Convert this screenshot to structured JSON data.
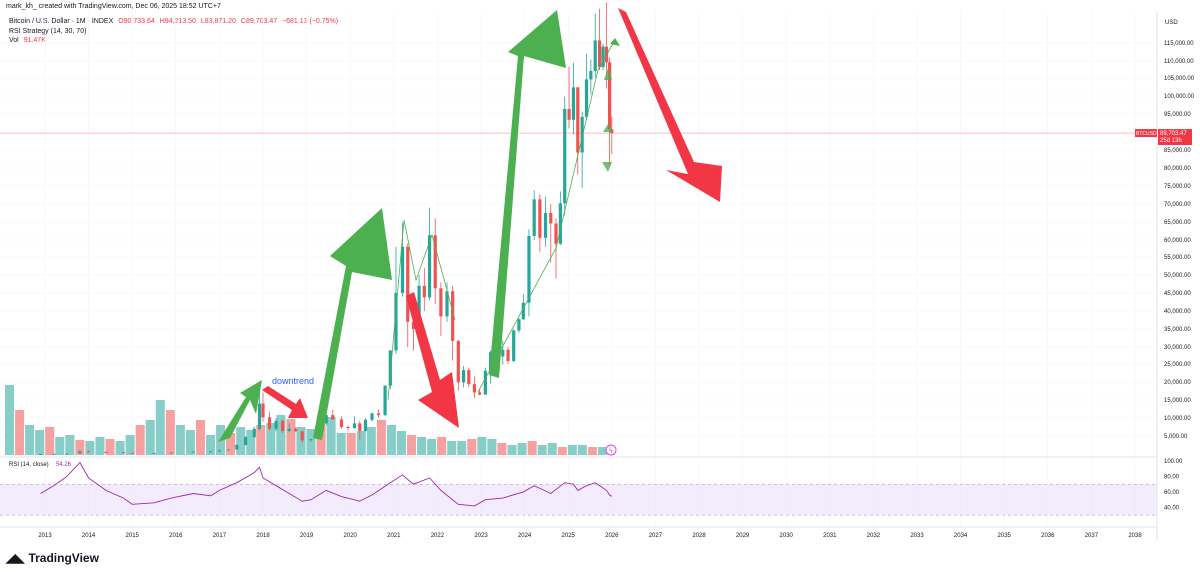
{
  "header": {
    "caption": "mark_kh_ created with TradingView.com, Dec 06, 2025 18:52 UTC+7"
  },
  "legend": {
    "symbol": "Bitcoin / U.S. Dollar · 1M · INDEX",
    "open": "O90,733.64",
    "high": "H94,213.50",
    "low": "L83,871.20",
    "close": "C89,703.47",
    "change": "−681.13 (−0.75%)",
    "strategy": "RSI Strategy (14, 30, 70)",
    "vol_label": "Vol",
    "vol_value": "91.47K"
  },
  "price_axis": {
    "currency": "USD",
    "ticks": [
      "115,000.00",
      "110,000.00",
      "105,000.00",
      "100,000.00",
      "95,000.00",
      "85,000.00",
      "80,000.00",
      "75,000.00",
      "70,000.00",
      "65,000.00",
      "60,000.00",
      "55,000.00",
      "50,000.00",
      "45,000.00",
      "40,000.00",
      "35,000.00",
      "30,000.00",
      "25,000.00",
      "20,000.00",
      "15,000.00",
      "10,000.00",
      "5,000.00"
    ],
    "last_price_symbol": "BTCUSD",
    "last_price": "89,703.47",
    "countdown": "25d 13h"
  },
  "rsi_pane": {
    "label": "RSI (14, close)",
    "value": "54.26",
    "ticks": [
      "100.00",
      "80.00",
      "60.00",
      "40.00"
    ]
  },
  "time_axis": {
    "years": [
      "2013",
      "2014",
      "2015",
      "2016",
      "2017",
      "2018",
      "2019",
      "2020",
      "2021",
      "2022",
      "2023",
      "2024",
      "2025",
      "2026",
      "2027",
      "2028",
      "2029",
      "2030",
      "2031",
      "2032",
      "2033",
      "2034",
      "2035",
      "2036",
      "2037",
      "2038"
    ]
  },
  "annotations": {
    "downtrend_text": "downtrend"
  },
  "footer": {
    "brand": "TradingView"
  },
  "colors": {
    "up": "#26a69a",
    "down": "#ef5350",
    "up_arrow": "#4caf50",
    "down_arrow": "#f23645",
    "rsi": "#9c27b0",
    "downtrend_text": "#2962ff"
  },
  "chart_data": {
    "type": "candlestick",
    "title": "Bitcoin / U.S. Dollar · 1M · INDEX",
    "y_scale": "log",
    "y_unit": "USD",
    "last_close": 89703.47,
    "candles": [
      {
        "t": 2012.9,
        "o": 13,
        "h": 14,
        "l": 12,
        "c": 13
      },
      {
        "t": 2013.2,
        "o": 13,
        "h": 60,
        "l": 13,
        "c": 55
      },
      {
        "t": 2013.5,
        "o": 55,
        "h": 120,
        "l": 55,
        "c": 110
      },
      {
        "t": 2013.8,
        "o": 110,
        "h": 1150,
        "l": 100,
        "c": 750
      },
      {
        "t": 2014.0,
        "o": 750,
        "h": 1000,
        "l": 500,
        "c": 600
      },
      {
        "t": 2014.4,
        "o": 600,
        "h": 650,
        "l": 400,
        "c": 450
      },
      {
        "t": 2014.8,
        "o": 450,
        "h": 500,
        "l": 300,
        "c": 330
      },
      {
        "t": 2015.0,
        "o": 330,
        "h": 350,
        "l": 180,
        "c": 220
      },
      {
        "t": 2015.5,
        "o": 220,
        "h": 300,
        "l": 200,
        "c": 250
      },
      {
        "t": 2015.9,
        "o": 250,
        "h": 450,
        "l": 240,
        "c": 430
      },
      {
        "t": 2016.4,
        "o": 430,
        "h": 780,
        "l": 420,
        "c": 650
      },
      {
        "t": 2016.8,
        "o": 650,
        "h": 800,
        "l": 600,
        "c": 750
      },
      {
        "t": 2017.0,
        "o": 750,
        "h": 1200,
        "l": 750,
        "c": 1000
      },
      {
        "t": 2017.2,
        "o": 1000,
        "h": 1300,
        "l": 900,
        "c": 1250
      },
      {
        "t": 2017.4,
        "o": 1250,
        "h": 2800,
        "l": 1200,
        "c": 2500
      },
      {
        "t": 2017.6,
        "o": 2500,
        "h": 4900,
        "l": 2400,
        "c": 4700
      },
      {
        "t": 2017.8,
        "o": 4700,
        "h": 7500,
        "l": 4500,
        "c": 7000
      },
      {
        "t": 2017.92,
        "o": 7000,
        "h": 19800,
        "l": 6500,
        "c": 14000
      },
      {
        "t": 2018.0,
        "o": 14000,
        "h": 17000,
        "l": 9000,
        "c": 10200
      },
      {
        "t": 2018.15,
        "o": 10200,
        "h": 11700,
        "l": 6500,
        "c": 7000
      },
      {
        "t": 2018.3,
        "o": 7000,
        "h": 9900,
        "l": 6400,
        "c": 9200
      },
      {
        "t": 2018.45,
        "o": 9200,
        "h": 9600,
        "l": 5800,
        "c": 6400
      },
      {
        "t": 2018.6,
        "o": 6400,
        "h": 8500,
        "l": 6000,
        "c": 7000
      },
      {
        "t": 2018.75,
        "o": 7000,
        "h": 7400,
        "l": 6200,
        "c": 6300
      },
      {
        "t": 2018.9,
        "o": 6300,
        "h": 6500,
        "l": 3200,
        "c": 3800
      },
      {
        "t": 2019.1,
        "o": 3800,
        "h": 4200,
        "l": 3400,
        "c": 4100
      },
      {
        "t": 2019.3,
        "o": 4100,
        "h": 9000,
        "l": 4000,
        "c": 8500
      },
      {
        "t": 2019.45,
        "o": 8500,
        "h": 13800,
        "l": 8000,
        "c": 10800
      },
      {
        "t": 2019.6,
        "o": 10800,
        "h": 12300,
        "l": 9500,
        "c": 9600
      },
      {
        "t": 2019.8,
        "o": 9600,
        "h": 10500,
        "l": 7000,
        "c": 7500
      },
      {
        "t": 2019.95,
        "o": 7500,
        "h": 8000,
        "l": 6500,
        "c": 7200
      },
      {
        "t": 2020.1,
        "o": 7200,
        "h": 10500,
        "l": 7000,
        "c": 8500
      },
      {
        "t": 2020.22,
        "o": 8500,
        "h": 9200,
        "l": 3800,
        "c": 6400
      },
      {
        "t": 2020.35,
        "o": 6400,
        "h": 10000,
        "l": 6200,
        "c": 9500
      },
      {
        "t": 2020.5,
        "o": 9500,
        "h": 11500,
        "l": 9000,
        "c": 11300
      },
      {
        "t": 2020.65,
        "o": 11300,
        "h": 12400,
        "l": 10000,
        "c": 10800
      },
      {
        "t": 2020.8,
        "o": 10800,
        "h": 19000,
        "l": 10500,
        "c": 19000
      },
      {
        "t": 2020.92,
        "o": 19000,
        "h": 29000,
        "l": 18000,
        "c": 29000
      },
      {
        "t": 2021.05,
        "o": 29000,
        "h": 58000,
        "l": 28000,
        "c": 45000
      },
      {
        "t": 2021.2,
        "o": 45000,
        "h": 64800,
        "l": 44000,
        "c": 58000
      },
      {
        "t": 2021.32,
        "o": 58000,
        "h": 59000,
        "l": 30000,
        "c": 37000
      },
      {
        "t": 2021.45,
        "o": 37000,
        "h": 42000,
        "l": 29000,
        "c": 35000
      },
      {
        "t": 2021.58,
        "o": 35000,
        "h": 50000,
        "l": 33000,
        "c": 47000
      },
      {
        "t": 2021.7,
        "o": 47000,
        "h": 52000,
        "l": 40000,
        "c": 43800
      },
      {
        "t": 2021.82,
        "o": 43800,
        "h": 69000,
        "l": 43000,
        "c": 61300
      },
      {
        "t": 2021.95,
        "o": 61300,
        "h": 66000,
        "l": 42000,
        "c": 46300
      },
      {
        "t": 2022.08,
        "o": 46300,
        "h": 48000,
        "l": 33000,
        "c": 38500
      },
      {
        "t": 2022.22,
        "o": 38500,
        "h": 48000,
        "l": 37000,
        "c": 45500
      },
      {
        "t": 2022.35,
        "o": 45500,
        "h": 47000,
        "l": 26000,
        "c": 31700
      },
      {
        "t": 2022.48,
        "o": 31700,
        "h": 32000,
        "l": 17600,
        "c": 19900
      },
      {
        "t": 2022.6,
        "o": 19900,
        "h": 24500,
        "l": 18500,
        "c": 23300
      },
      {
        "t": 2022.72,
        "o": 23300,
        "h": 24000,
        "l": 18500,
        "c": 19400
      },
      {
        "t": 2022.85,
        "o": 19400,
        "h": 21500,
        "l": 15500,
        "c": 17100
      },
      {
        "t": 2022.97,
        "o": 17100,
        "h": 18000,
        "l": 16300,
        "c": 16500
      },
      {
        "t": 2023.1,
        "o": 16500,
        "h": 24000,
        "l": 16500,
        "c": 23100
      },
      {
        "t": 2023.22,
        "o": 23100,
        "h": 29000,
        "l": 19600,
        "c": 28400
      },
      {
        "t": 2023.35,
        "o": 28400,
        "h": 31000,
        "l": 26500,
        "c": 27200
      },
      {
        "t": 2023.5,
        "o": 27200,
        "h": 31800,
        "l": 24800,
        "c": 29200
      },
      {
        "t": 2023.62,
        "o": 29200,
        "h": 30000,
        "l": 25000,
        "c": 25900
      },
      {
        "t": 2023.75,
        "o": 25900,
        "h": 35000,
        "l": 25500,
        "c": 34600
      },
      {
        "t": 2023.87,
        "o": 34600,
        "h": 38000,
        "l": 34000,
        "c": 37700
      },
      {
        "t": 2023.97,
        "o": 37700,
        "h": 44700,
        "l": 37500,
        "c": 42300
      },
      {
        "t": 2024.1,
        "o": 42300,
        "h": 63000,
        "l": 38500,
        "c": 61100
      },
      {
        "t": 2024.22,
        "o": 61100,
        "h": 73800,
        "l": 60000,
        "c": 71300
      },
      {
        "t": 2024.35,
        "o": 71300,
        "h": 72700,
        "l": 56500,
        "c": 60600
      },
      {
        "t": 2024.48,
        "o": 60600,
        "h": 72000,
        "l": 58000,
        "c": 67500
      },
      {
        "t": 2024.6,
        "o": 67500,
        "h": 70000,
        "l": 53500,
        "c": 64600
      },
      {
        "t": 2024.72,
        "o": 64600,
        "h": 66000,
        "l": 49000,
        "c": 58900
      },
      {
        "t": 2024.82,
        "o": 58900,
        "h": 73500,
        "l": 58500,
        "c": 70200
      },
      {
        "t": 2024.92,
        "o": 70200,
        "h": 99800,
        "l": 66800,
        "c": 96400
      },
      {
        "t": 2025.02,
        "o": 96400,
        "h": 108300,
        "l": 91000,
        "c": 93400
      },
      {
        "t": 2025.12,
        "o": 93400,
        "h": 109500,
        "l": 89300,
        "c": 102400
      },
      {
        "t": 2025.22,
        "o": 102400,
        "h": 102500,
        "l": 78200,
        "c": 84300
      },
      {
        "t": 2025.32,
        "o": 84300,
        "h": 95700,
        "l": 74500,
        "c": 94200
      },
      {
        "t": 2025.42,
        "o": 94200,
        "h": 111900,
        "l": 93300,
        "c": 104600
      },
      {
        "t": 2025.52,
        "o": 104600,
        "h": 110400,
        "l": 100400,
        "c": 107100
      },
      {
        "t": 2025.62,
        "o": 107100,
        "h": 123200,
        "l": 105100,
        "c": 115700
      },
      {
        "t": 2025.72,
        "o": 115700,
        "h": 124500,
        "l": 107300,
        "c": 108200
      },
      {
        "t": 2025.8,
        "o": 108200,
        "h": 114800,
        "l": 107300,
        "c": 114000
      },
      {
        "t": 2025.88,
        "o": 114000,
        "h": 126200,
        "l": 102000,
        "c": 109600
      },
      {
        "t": 2025.95,
        "o": 109600,
        "h": 111000,
        "l": 80600,
        "c": 90700
      },
      {
        "t": 2026.0,
        "o": 90733.64,
        "h": 94213.5,
        "l": 83871.2,
        "c": 89703.47
      }
    ],
    "rsi": {
      "name": "RSI (14, close)",
      "last": 54.26,
      "upper_band": 70,
      "lower_band": 30,
      "x": [
        2012.9,
        2013.2,
        2013.5,
        2013.8,
        2014.0,
        2014.4,
        2014.8,
        2015.0,
        2015.5,
        2015.9,
        2016.4,
        2016.8,
        2017.0,
        2017.4,
        2017.8,
        2017.92,
        2018.0,
        2018.3,
        2018.6,
        2018.9,
        2019.1,
        2019.45,
        2019.8,
        2020.22,
        2020.5,
        2020.92,
        2021.2,
        2021.45,
        2021.82,
        2022.08,
        2022.48,
        2022.85,
        2023.1,
        2023.5,
        2023.97,
        2024.22,
        2024.6,
        2024.92,
        2025.12,
        2025.22,
        2025.42,
        2025.62,
        2025.72,
        2025.88,
        2025.95,
        2026.0
      ],
      "y": [
        58,
        68,
        80,
        98,
        78,
        62,
        52,
        44,
        46,
        52,
        58,
        55,
        62,
        72,
        85,
        92,
        78,
        68,
        58,
        48,
        50,
        62,
        54,
        48,
        56,
        72,
        82,
        70,
        78,
        62,
        44,
        42,
        50,
        52,
        60,
        68,
        58,
        72,
        70,
        62,
        68,
        72,
        68,
        62,
        56,
        54.26
      ]
    },
    "volume_profile": [
      70,
      45,
      30,
      25,
      28,
      18,
      20,
      15,
      14,
      18,
      16,
      14,
      20,
      30,
      35,
      55,
      45,
      30,
      25,
      35,
      20,
      30,
      22,
      28,
      25,
      30,
      32,
      40,
      36,
      28,
      26,
      30,
      38,
      22,
      22,
      24,
      28,
      35,
      30,
      24,
      20,
      18,
      16,
      18,
      14,
      14,
      16,
      18,
      16,
      12,
      10,
      12,
      14,
      10,
      12,
      8,
      10,
      10,
      8,
      8
    ],
    "annotations": [
      "downtrend"
    ]
  }
}
